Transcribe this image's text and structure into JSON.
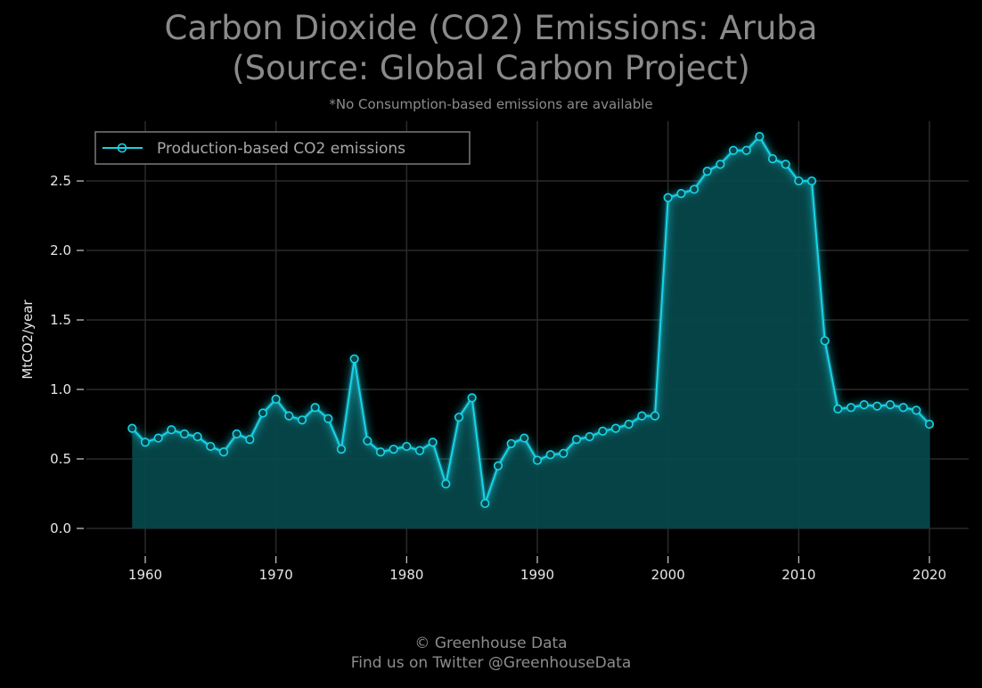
{
  "title_line1": "Carbon Dioxide (CO2) Emissions: Aruba",
  "title_line2": "(Source: Global Carbon Project)",
  "subtitle": "*No Consumption-based emissions are available",
  "footer_line1": "© Greenhouse Data",
  "footer_line2": "Find us on Twitter @GreenhouseData",
  "colors": {
    "background": "#000000",
    "line": "#19d3e6",
    "fill": "#06474a",
    "grid": "#2a2a2a"
  },
  "chart_data": {
    "type": "area",
    "title": "Carbon Dioxide (CO2) Emissions: Aruba (Source: Global Carbon Project)",
    "xlabel": "",
    "ylabel": "MtCO2/year",
    "xlim": [
      1955.5,
      2023
    ],
    "ylim": [
      -0.18,
      2.93
    ],
    "xticks": [
      1960,
      1970,
      1980,
      1990,
      2000,
      2010,
      2020
    ],
    "yticks": [
      0.0,
      0.5,
      1.0,
      1.5,
      2.0,
      2.5
    ],
    "ytick_labels": [
      "0.0",
      "0.5",
      "1.0",
      "1.5",
      "2.0",
      "2.5"
    ],
    "grid": true,
    "legend_position": "top-left",
    "series": [
      {
        "name": "Production-based CO2 emissions",
        "x": [
          1959,
          1960,
          1961,
          1962,
          1963,
          1964,
          1965,
          1966,
          1967,
          1968,
          1969,
          1970,
          1971,
          1972,
          1973,
          1974,
          1975,
          1976,
          1977,
          1978,
          1979,
          1980,
          1981,
          1982,
          1983,
          1984,
          1985,
          1986,
          1987,
          1988,
          1989,
          1990,
          1991,
          1992,
          1993,
          1994,
          1995,
          1996,
          1997,
          1998,
          1999,
          2000,
          2001,
          2002,
          2003,
          2004,
          2005,
          2006,
          2007,
          2008,
          2009,
          2010,
          2011,
          2012,
          2013,
          2014,
          2015,
          2016,
          2017,
          2018,
          2019,
          2020
        ],
        "values": [
          0.72,
          0.62,
          0.65,
          0.71,
          0.68,
          0.66,
          0.59,
          0.55,
          0.68,
          0.64,
          0.83,
          0.93,
          0.81,
          0.78,
          0.87,
          0.79,
          0.57,
          1.22,
          0.63,
          0.55,
          0.57,
          0.59,
          0.56,
          0.62,
          0.32,
          0.8,
          0.94,
          0.18,
          0.45,
          0.61,
          0.65,
          0.49,
          0.53,
          0.54,
          0.64,
          0.66,
          0.7,
          0.72,
          0.75,
          0.81,
          0.81,
          2.38,
          2.41,
          2.44,
          2.57,
          2.62,
          2.72,
          2.72,
          2.82,
          2.66,
          2.62,
          2.5,
          2.5,
          1.35,
          0.86,
          0.87,
          0.89,
          0.88,
          0.89,
          0.87,
          0.85,
          0.75
        ]
      }
    ]
  }
}
